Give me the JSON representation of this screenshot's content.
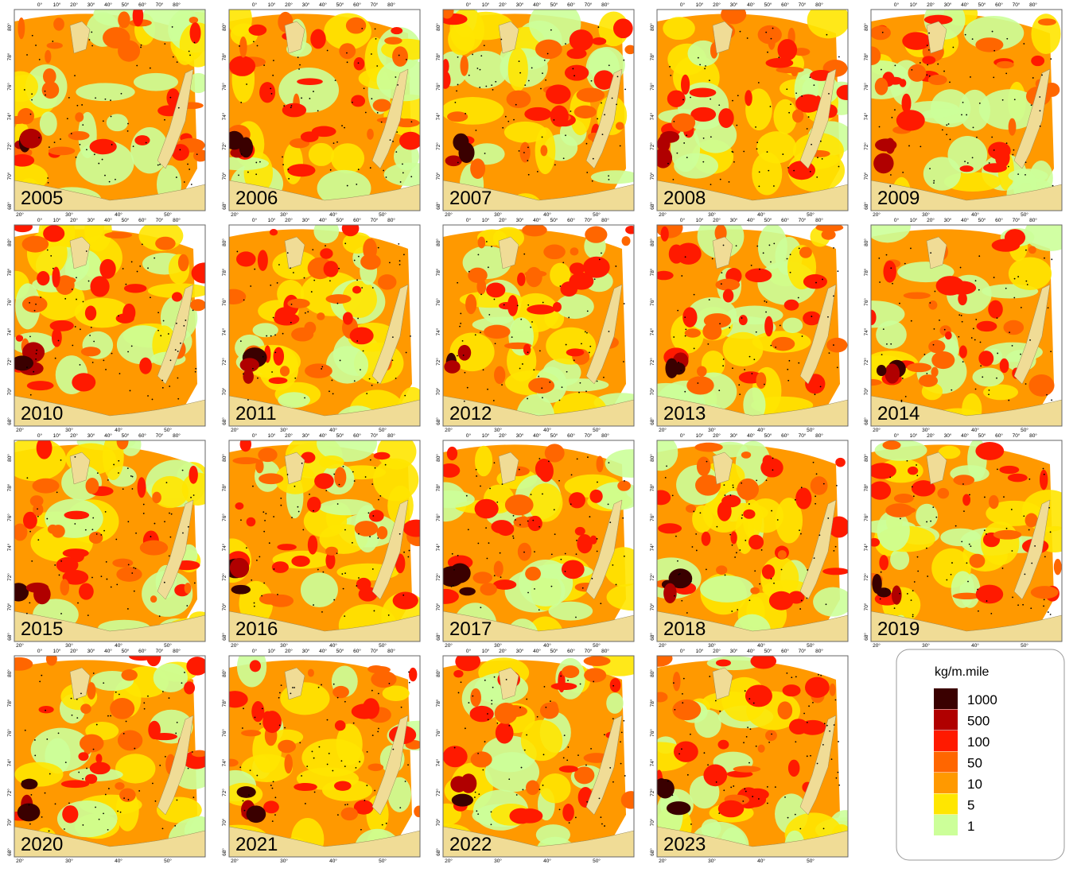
{
  "panels": [
    {
      "year": "2005"
    },
    {
      "year": "2006"
    },
    {
      "year": "2007"
    },
    {
      "year": "2008"
    },
    {
      "year": "2009"
    },
    {
      "year": "2010"
    },
    {
      "year": "2011"
    },
    {
      "year": "2012"
    },
    {
      "year": "2013"
    },
    {
      "year": "2014"
    },
    {
      "year": "2015"
    },
    {
      "year": "2016"
    },
    {
      "year": "2017"
    },
    {
      "year": "2018"
    },
    {
      "year": "2019"
    },
    {
      "year": "2020"
    },
    {
      "year": "2021"
    },
    {
      "year": "2022"
    },
    {
      "year": "2023"
    }
  ],
  "top_lon_labels": [
    "0°",
    "10°",
    "20°",
    "30°",
    "40°",
    "50°",
    "60°",
    "70°",
    "80°"
  ],
  "bottom_lon_labels": [
    "20°",
    "30°",
    "40°",
    "50°"
  ],
  "lat_labels": [
    "80°",
    "78°",
    "76°",
    "74°",
    "72°",
    "70°",
    "68°"
  ],
  "legend": {
    "title": "kg/m.mile",
    "items": [
      {
        "label": "1000",
        "color": "#3a0000"
      },
      {
        "label": "500",
        "color": "#b00000"
      },
      {
        "label": "100",
        "color": "#ff1a00"
      },
      {
        "label": "50",
        "color": "#ff6600"
      },
      {
        "label": "10",
        "color": "#ff9900"
      },
      {
        "label": "5",
        "color": "#ffe600"
      },
      {
        "label": "1",
        "color": "#ccff99"
      }
    ]
  }
}
